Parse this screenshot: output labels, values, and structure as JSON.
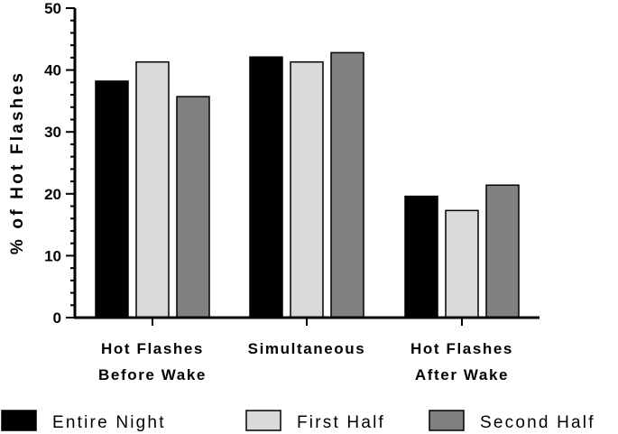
{
  "chart_data": {
    "type": "bar",
    "ylabel": "% of Hot Flashes",
    "xlabel": "",
    "ylim": [
      0,
      50
    ],
    "yticks": [
      0,
      10,
      20,
      30,
      40,
      50
    ],
    "categories": [
      [
        "Hot Flashes",
        "Before Wake"
      ],
      [
        "Simultaneous"
      ],
      [
        "Hot Flashes",
        "After Wake"
      ]
    ],
    "series": [
      {
        "name": "Entire Night",
        "color": "#000000",
        "values": [
          38.2,
          42.1,
          19.6
        ]
      },
      {
        "name": "First Half",
        "color": "#d9d9d9",
        "values": [
          41.3,
          41.3,
          17.3
        ]
      },
      {
        "name": "Second Half",
        "color": "#808080",
        "values": [
          35.7,
          42.8,
          21.4
        ]
      }
    ],
    "legend_position": "bottom",
    "grid": false
  }
}
